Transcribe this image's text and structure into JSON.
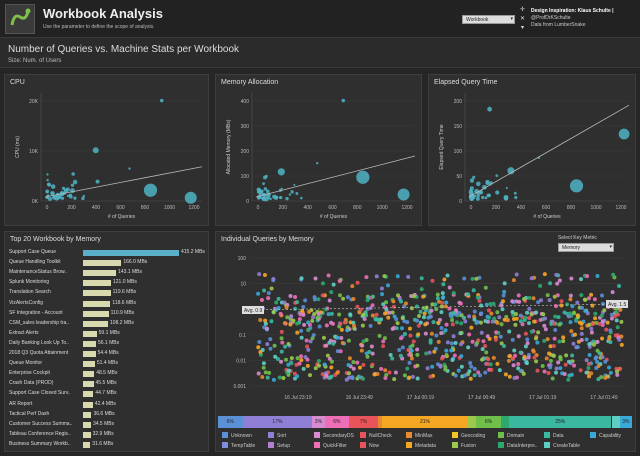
{
  "header": {
    "title": "Workbook Analysis",
    "subtitle": "Use the parameter to define the scope of analysis.",
    "param_value": "Workbook",
    "credits_title": "Design Inspiration: Klaus Schulte |",
    "credits_handle": "@ProfDrKSchulte",
    "credits_source": "Data from LumberSnake"
  },
  "section": {
    "title": "Number of Queries vs. Machine Stats per Workbook",
    "subtitle": "Size: Num. of Users"
  },
  "scatter_panels": [
    {
      "title": "CPU",
      "ylabel": "CPU (ms)",
      "xlabel": "# of Queries",
      "yticks": [
        "0K",
        "10K",
        "20K"
      ],
      "xticks": [
        "0",
        "200",
        "400",
        "600",
        "800",
        "1000",
        "1200"
      ]
    },
    {
      "title": "Memory Allocation",
      "ylabel": "Allocated Memory (MBs)",
      "xlabel": "# of Queries",
      "yticks": [
        "0",
        "100",
        "200",
        "300",
        "400"
      ],
      "xticks": [
        "0",
        "200",
        "400",
        "600",
        "800",
        "1000",
        "1200"
      ]
    },
    {
      "title": "Elapsed Query Time",
      "ylabel": "Elapsed Query Time",
      "xlabel": "# of Queries",
      "yticks": [
        "0",
        "50",
        "100",
        "150",
        "200"
      ],
      "xticks": [
        "0",
        "200",
        "400",
        "600",
        "800",
        "1000",
        "1200"
      ]
    }
  ],
  "top20": {
    "title": "Top 20 Workbook by Memory",
    "rows": [
      {
        "label": "Support Case Queue",
        "value": "415.2 MBs",
        "v": 415.2
      },
      {
        "label": "Queue Handling Toolkit",
        "value": "166.0 MBs",
        "v": 166.0
      },
      {
        "label": "MaintenanceStatus Brow..",
        "value": "143.1 MBs",
        "v": 143.1
      },
      {
        "label": "Splunk Monitoring",
        "value": "121.0 MBs",
        "v": 121.0
      },
      {
        "label": "Translation Search",
        "value": "119.6 MBs",
        "v": 119.6
      },
      {
        "label": "VizAlertsConfig",
        "value": "118.6 MBs",
        "v": 118.6
      },
      {
        "label": "SF Integration - Account",
        "value": "110.9 MBs",
        "v": 110.9
      },
      {
        "label": "CSM_sales leadership tra..",
        "value": "108.2 MBs",
        "v": 108.2
      },
      {
        "label": "Extract Alerts",
        "value": "59.1 MBs",
        "v": 59.1
      },
      {
        "label": "Daily Banking Look Up To..",
        "value": "56.1 MBs",
        "v": 56.1
      },
      {
        "label": "2018 Q3 Quota Attainment",
        "value": "54.4 MBs",
        "v": 54.4
      },
      {
        "label": "Queue Monitor",
        "value": "51.4 MBs",
        "v": 51.4
      },
      {
        "label": "Enterprise Cockpit",
        "value": "48.5 MBs",
        "v": 48.5
      },
      {
        "label": "Crash Data (PROD)",
        "value": "45.5 MBs",
        "v": 45.5
      },
      {
        "label": "Support Case Closed Surv..",
        "value": "44.7 MBs",
        "v": 44.7
      },
      {
        "label": "AR Report",
        "value": "42.4 MBs",
        "v": 42.4
      },
      {
        "label": "Tactical Perf Dash",
        "value": "36.6 MBs",
        "v": 36.6
      },
      {
        "label": "Customer Success Summa..",
        "value": "34.5 MBs",
        "v": 34.5
      },
      {
        "label": "Tableau Conference Regis..",
        "value": "32.9 MBs",
        "v": 32.9
      },
      {
        "label": "Business Summary Workb..",
        "value": "31.6 MBs",
        "v": 31.6
      }
    ]
  },
  "individual": {
    "title": "Individual Queries by Memory",
    "metric_label": "Select Key Metric",
    "metric_value": "Memory",
    "yticks": [
      "100",
      "10",
      "1",
      "0.1",
      "0.01",
      "0.001"
    ],
    "xticks": [
      "16 Jul 23:19",
      "16 Jul 23:49",
      "17 Jul 00:19",
      "17 Jul 00:49",
      "17 Jul 01:19",
      "17 Jul 01:49"
    ],
    "avg_left": "Avg. 0.9",
    "avg_right": "Avg. 1.5"
  },
  "segments": [
    {
      "label": "6%",
      "pct": 6,
      "color": "#5b8fd6"
    },
    {
      "label": "17%",
      "pct": 17,
      "color": "#8f7fd6"
    },
    {
      "label": "3%",
      "pct": 3,
      "color": "#d98bd1"
    },
    {
      "label": "6%",
      "pct": 6,
      "color": "#ee6fb8"
    },
    {
      "label": "7%",
      "pct": 7,
      "color": "#e8545a"
    },
    {
      "label": "",
      "pct": 1,
      "color": "#e88a2e"
    },
    {
      "label": "21%",
      "pct": 21,
      "color": "#f5a623"
    },
    {
      "label": "",
      "pct": 2,
      "color": "#9ac94c"
    },
    {
      "label": "6%",
      "pct": 6,
      "color": "#6fbf4a"
    },
    {
      "label": "",
      "pct": 2,
      "color": "#2ea86f"
    },
    {
      "label": "25%",
      "pct": 25,
      "color": "#3ab9a0"
    },
    {
      "label": "",
      "pct": 2,
      "color": "#5fcfc4"
    },
    {
      "label": "3%",
      "pct": 3,
      "color": "#38a9d8"
    }
  ],
  "legend": [
    {
      "label": "Unknown",
      "color": "#5b8fd6"
    },
    {
      "label": "TempTable",
      "color": "#7e8fe0"
    },
    {
      "label": "Sort",
      "color": "#8f7fd6"
    },
    {
      "label": "Setup",
      "color": "#b07fd6"
    },
    {
      "label": "SecondaryDS",
      "color": "#d98bd1"
    },
    {
      "label": "QuickFilter",
      "color": "#ee6fb8"
    },
    {
      "label": "NullCheck",
      "color": "#e8545a"
    },
    {
      "label": "Now",
      "color": "#e8545a"
    },
    {
      "label": "MinMax",
      "color": "#e88a2e"
    },
    {
      "label": "Metadata",
      "color": "#f5a623"
    },
    {
      "label": "Geocoding",
      "color": "#f5c623"
    },
    {
      "label": "Fusion",
      "color": "#9ac94c"
    },
    {
      "label": "Domain",
      "color": "#6fbf4a"
    },
    {
      "label": "DataInterpre..",
      "color": "#2ea86f"
    },
    {
      "label": "Data",
      "color": "#3ab9a0"
    },
    {
      "label": "CreateTable",
      "color": "#5fcfc4"
    },
    {
      "label": "Capability",
      "color": "#38a9d8"
    }
  ],
  "colors": {
    "bubble": "#4fb3c4",
    "trend": "#bbbbbb",
    "bar": "#d9d9b0",
    "bar_top": "#5bb0c9"
  }
}
